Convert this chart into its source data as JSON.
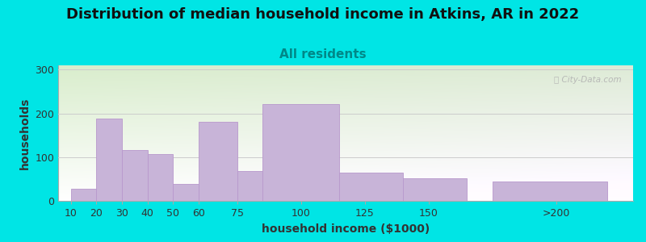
{
  "title": "Distribution of median household income in Atkins, AR in 2022",
  "subtitle": "All residents",
  "xlabel": "household income ($1000)",
  "ylabel": "households",
  "bar_lefts": [
    10,
    20,
    30,
    40,
    50,
    60,
    75,
    85,
    115,
    140,
    175
  ],
  "bar_widths": [
    10,
    10,
    10,
    10,
    10,
    15,
    10,
    30,
    25,
    25,
    45
  ],
  "bar_heights": [
    28,
    188,
    117,
    107,
    38,
    180,
    68,
    222,
    65,
    52,
    45
  ],
  "bar_color": "#c8b4d8",
  "bar_edge_color": "#b898cc",
  "background_outer": "#00e5e5",
  "background_plot_topleft": "#d8eecc",
  "background_plot_bottomright": "#f5f5f5",
  "yticks": [
    0,
    100,
    200,
    300
  ],
  "ylim": [
    0,
    310
  ],
  "xtick_labels": [
    "10",
    "20",
    "30",
    "40",
    "50",
    "60",
    "75",
    "100",
    "125",
    "150",
    ">200"
  ],
  "xtick_positions": [
    10,
    20,
    30,
    40,
    50,
    60,
    75,
    100,
    125,
    150,
    200
  ],
  "xlim_left": 5,
  "xlim_right": 230,
  "title_fontsize": 13,
  "subtitle_fontsize": 11,
  "axis_label_fontsize": 10,
  "tick_fontsize": 9,
  "watermark_text": "Ⓢ City-Data.com",
  "grid_color": "#cccccc"
}
